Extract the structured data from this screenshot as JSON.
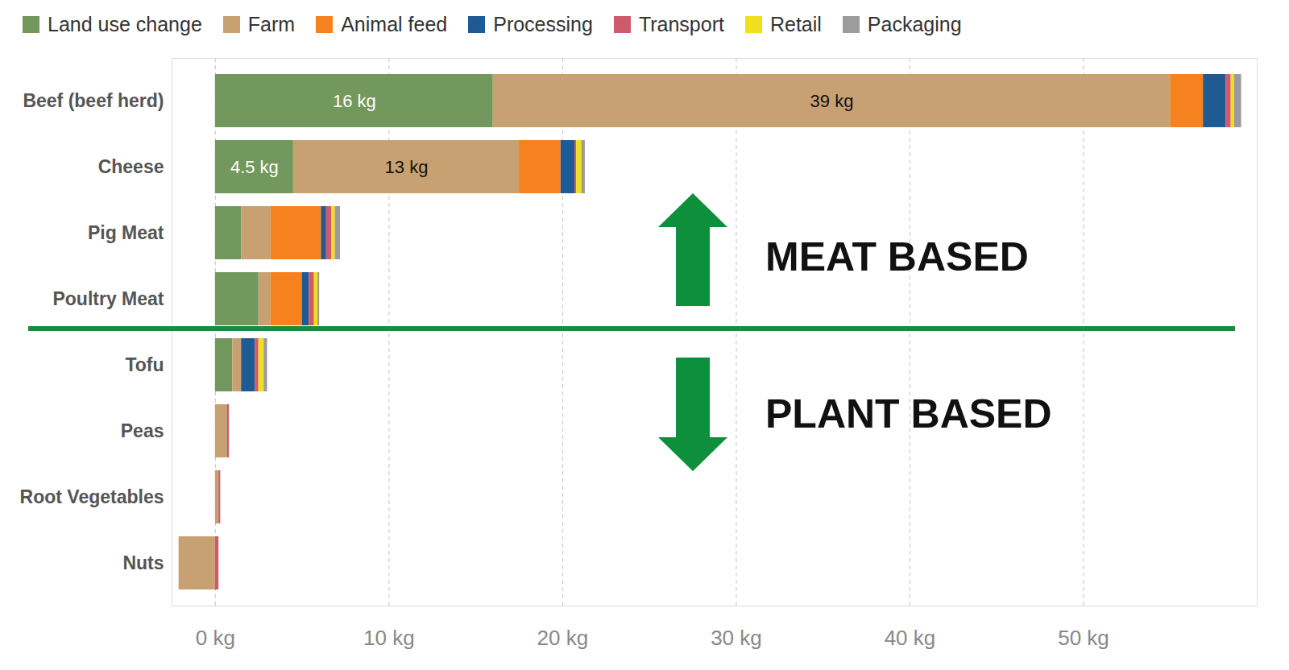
{
  "chart_data": {
    "type": "bar",
    "orientation": "horizontal",
    "stacked": true,
    "categories": [
      "Beef (beef herd)",
      "Cheese",
      "Pig Meat",
      "Poultry Meat",
      "Tofu",
      "Peas",
      "Root Vegetables",
      "Nuts"
    ],
    "series": [
      {
        "name": "Land use change",
        "color": "#72985d",
        "values": [
          16,
          4.5,
          1.5,
          2.5,
          1.0,
          0,
          0,
          0
        ],
        "value_labels": [
          "16 kg",
          "4.5 kg",
          null,
          null,
          null,
          null,
          null,
          null
        ]
      },
      {
        "name": "Farm",
        "color": "#c8a173",
        "values": [
          39,
          13,
          1.7,
          0.7,
          0.5,
          0.7,
          0.2,
          -2.1
        ],
        "value_labels": [
          "39 kg",
          "13 kg",
          null,
          null,
          null,
          null,
          null,
          null
        ]
      },
      {
        "name": "Animal feed",
        "color": "#f5821f",
        "values": [
          1.9,
          2.4,
          2.9,
          1.8,
          0,
          0,
          0,
          0
        ]
      },
      {
        "name": "Processing",
        "color": "#1f5a93",
        "values": [
          1.3,
          0.8,
          0.3,
          0.4,
          0.8,
          0,
          0,
          0
        ]
      },
      {
        "name": "Transport",
        "color": "#cf5a6c",
        "values": [
          0.3,
          0.1,
          0.3,
          0.3,
          0.2,
          0.1,
          0.1,
          0.2
        ]
      },
      {
        "name": "Retail",
        "color": "#f0df1e",
        "values": [
          0.2,
          0.3,
          0.2,
          0.2,
          0.3,
          0,
          0,
          0
        ]
      },
      {
        "name": "Packaging",
        "color": "#9c9c9c",
        "values": [
          0.4,
          0.2,
          0.3,
          0.1,
          0.2,
          0,
          0,
          0
        ]
      }
    ],
    "xlim": [
      -2.5,
      60
    ],
    "xticks": [
      {
        "value": 0,
        "label": "0 kg"
      },
      {
        "value": 10,
        "label": "10 kg"
      },
      {
        "value": 20,
        "label": "20 kg"
      },
      {
        "value": 30,
        "label": "30 kg"
      },
      {
        "value": 40,
        "label": "40 kg"
      },
      {
        "value": 50,
        "label": "50 kg"
      }
    ],
    "grid": true,
    "data_labels": true,
    "legend": "top",
    "annotations": [
      "MEAT BASED",
      "PLANT BASED"
    ]
  }
}
